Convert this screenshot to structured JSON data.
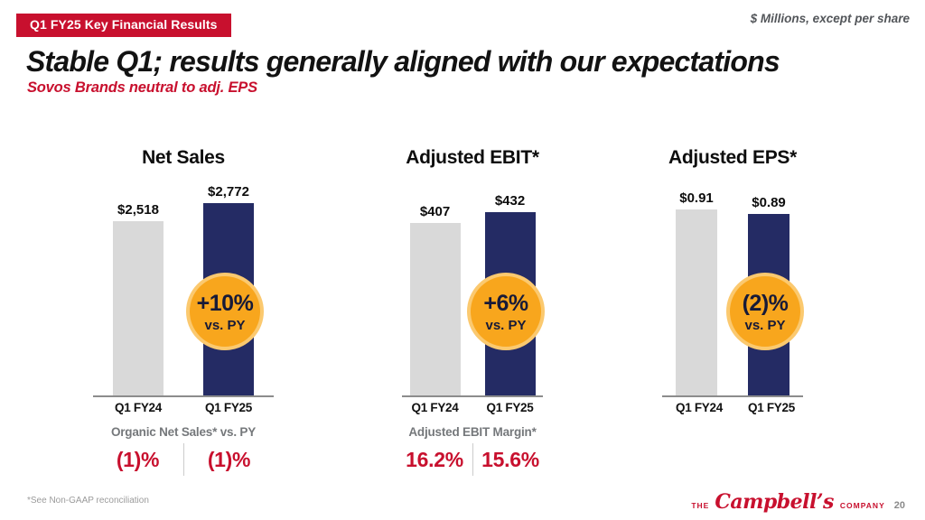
{
  "slide": {
    "kicker": "Q1 FY25 Key Financial Results",
    "units_note": "$ Millions, except per share",
    "title": "Stable Q1; results generally aligned with our expectations",
    "subtitle": "Sovos Brands neutral to adj. EPS",
    "footnote": "*See Non-GAAP reconciliation",
    "page_number": "20",
    "logo": {
      "the": "THE",
      "name": "Campbell’s",
      "company": "COMPANY"
    }
  },
  "colors": {
    "red": "#C8102E",
    "bar_prior": "#D9D9D9",
    "bar_current": "#242B64",
    "orange": "#F8A61D",
    "orange_ring": "#FBC96F",
    "badge_text": "#171A38",
    "label_gray": "#75787B",
    "note_gray": "#53565A",
    "footnote_gray": "#9B9B9B",
    "axis_gray": "#8C8C8C",
    "divider_gray": "#CCCCCC",
    "title_black": "#121212",
    "page_gray": "#8A8A8A"
  },
  "chart_data": [
    {
      "type": "bar",
      "title": "Net Sales",
      "categories": [
        "Q1 FY24",
        "Q1 FY25"
      ],
      "values": [
        2518,
        2772
      ],
      "value_labels": [
        "$2,518",
        "$2,772"
      ],
      "badge": {
        "delta": "+10%",
        "caption": "vs. PY"
      },
      "footer": {
        "label": "Organic Net Sales* vs. PY",
        "values": [
          "(1)%",
          "(1)%"
        ]
      },
      "grid": false,
      "legend": false,
      "ylabel": "",
      "xlabel": ""
    },
    {
      "type": "bar",
      "title": "Adjusted EBIT*",
      "categories": [
        "Q1 FY24",
        "Q1 FY25"
      ],
      "values": [
        407,
        432
      ],
      "value_labels": [
        "$407",
        "$432"
      ],
      "badge": {
        "delta": "+6%",
        "caption": "vs. PY"
      },
      "footer": {
        "label": "Adjusted EBIT Margin*",
        "values": [
          "16.2%",
          "15.6%"
        ]
      },
      "grid": false,
      "legend": false,
      "ylabel": "",
      "xlabel": ""
    },
    {
      "type": "bar",
      "title": "Adjusted EPS*",
      "categories": [
        "Q1 FY24",
        "Q1 FY25"
      ],
      "values": [
        0.91,
        0.89
      ],
      "value_labels": [
        "$0.91",
        "$0.89"
      ],
      "badge": {
        "delta": "(2)%",
        "caption": "vs. PY"
      },
      "footer": null,
      "grid": false,
      "legend": false,
      "ylabel": "",
      "xlabel": ""
    }
  ]
}
